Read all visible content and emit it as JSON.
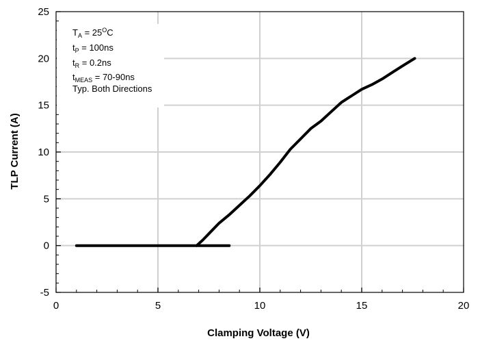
{
  "chart_data": {
    "type": "line",
    "title": "",
    "xlabel": "Clamping Voltage (V)",
    "ylabel": "TLP Current (A)",
    "xlim": [
      0,
      20
    ],
    "ylim": [
      -5,
      25
    ],
    "x_ticks": [
      0,
      5,
      10,
      15,
      20
    ],
    "y_ticks": [
      -5,
      0,
      5,
      10,
      15,
      20,
      25
    ],
    "grid": true,
    "legend": "none",
    "line_color": "#000000",
    "annotations": {
      "ta": {
        "main": "T",
        "sub": "A",
        "value": " = 25",
        "sup": "O",
        "unit": "C"
      },
      "tp": {
        "main": "t",
        "sub": "P",
        "value": " = 100ns"
      },
      "tr": {
        "main": "t",
        "sub": "R",
        "value": " = 0.2ns"
      },
      "tmeas": {
        "main": "t",
        "sub": "MEAS",
        "value": " = 70-90ns"
      },
      "note": "Typ. Both Directions"
    },
    "series": [
      {
        "x": [
          1.0,
          2.0,
          3.0,
          4.0,
          5.0,
          6.0,
          7.0,
          8.0,
          8.5
        ],
        "y": [
          0,
          0,
          0,
          0,
          0,
          0,
          0,
          0,
          0
        ]
      },
      {
        "x": [
          6.9,
          7.2,
          7.6,
          8.0,
          8.5,
          9.0,
          9.5,
          10.0,
          10.5,
          11.0,
          11.5,
          12.0,
          12.5,
          13.0,
          13.5,
          14.0,
          14.5,
          15.0,
          15.5,
          16.0,
          16.5,
          17.0,
          17.6
        ],
        "y": [
          0,
          0.6,
          1.5,
          2.4,
          3.3,
          4.3,
          5.3,
          6.4,
          7.6,
          8.9,
          10.3,
          11.4,
          12.5,
          13.3,
          14.3,
          15.3,
          16.0,
          16.7,
          17.2,
          17.8,
          18.5,
          19.2,
          20.0
        ]
      }
    ]
  }
}
